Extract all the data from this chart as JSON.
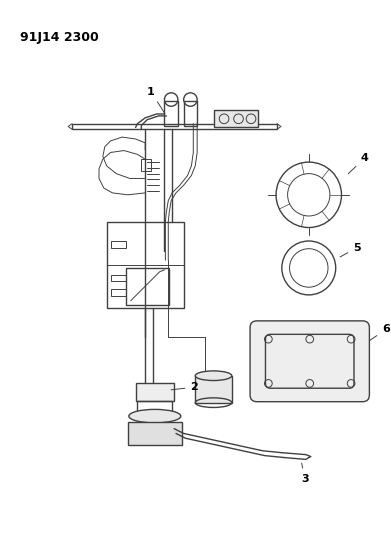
{
  "title_code": "91J14 2300",
  "background_color": "#ffffff",
  "line_color": "#404040",
  "label_color": "#000000",
  "figsize": [
    3.91,
    5.33
  ],
  "dpi": 100
}
